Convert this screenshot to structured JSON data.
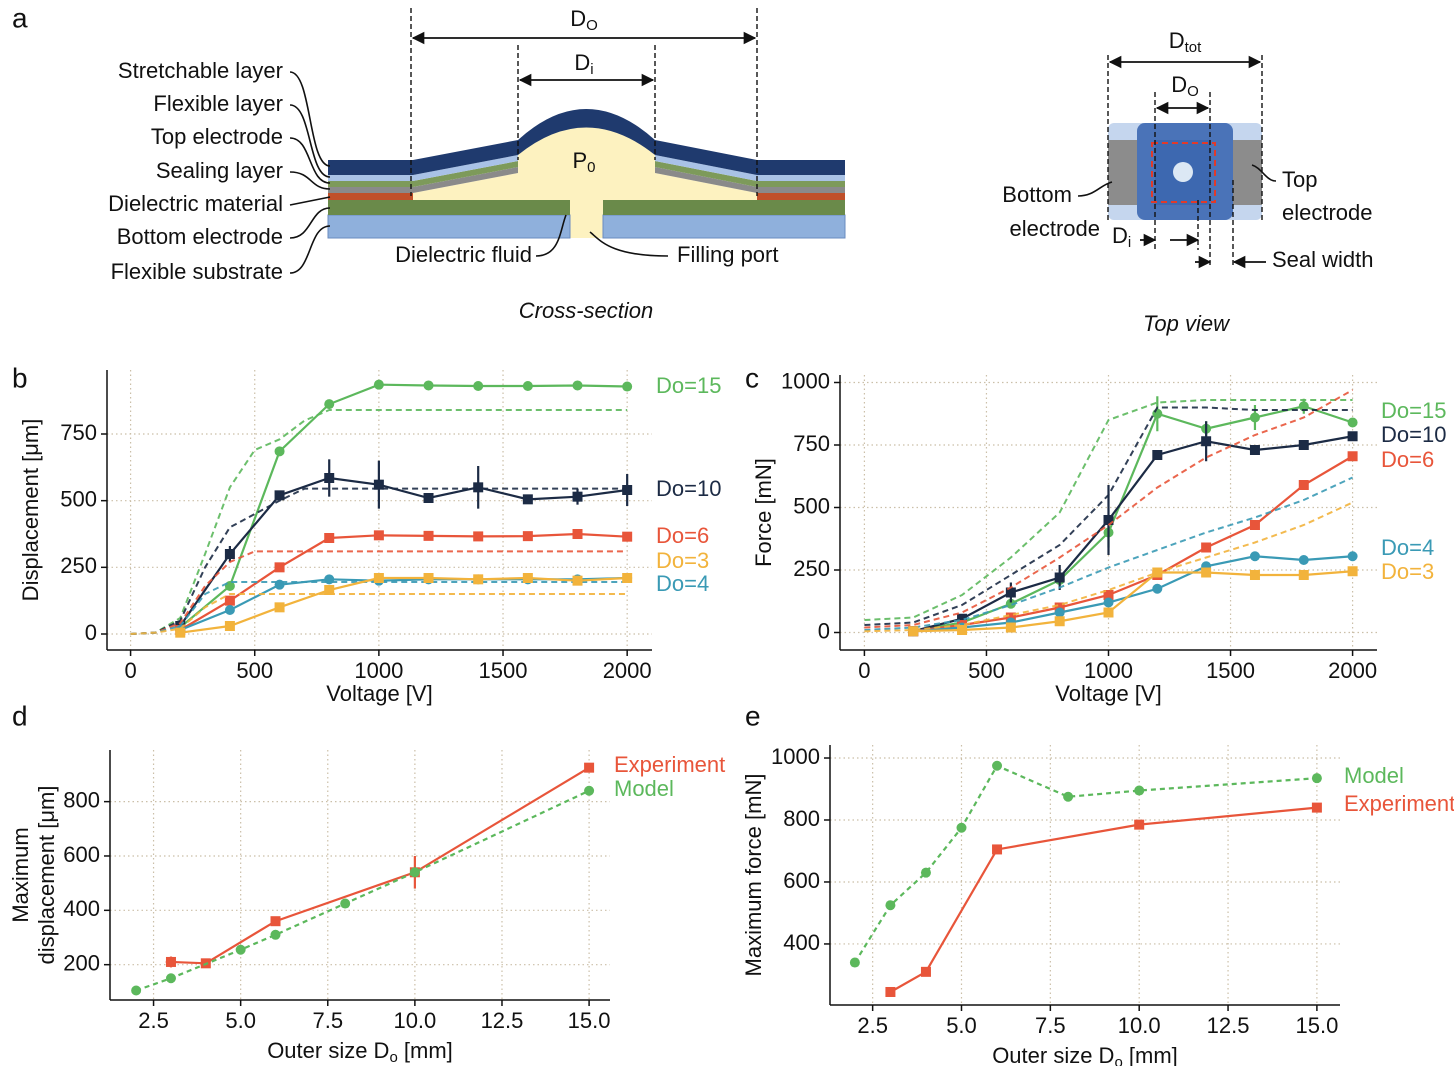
{
  "panels": [
    "a",
    "b",
    "c",
    "d",
    "e"
  ],
  "diagram": {
    "layers": [
      "Stretchable layer",
      "Flexible layer",
      "Top electrode",
      "Sealing layer",
      "Dielectric material",
      "Bottom electrode",
      "Flexible substrate"
    ],
    "fluid": "Dielectric fluid",
    "port": "Filling port",
    "outer": {
      "main": "D",
      "sub": "O"
    },
    "inner": {
      "main": "D",
      "sub": "i"
    },
    "pressure": {
      "main": "P",
      "sub": "0"
    },
    "caption": "Cross-section"
  },
  "top_view": {
    "total": {
      "main": "D",
      "sub": "tot"
    },
    "outer": {
      "main": "D",
      "sub": "O"
    },
    "inner": {
      "main": "D",
      "sub": "i"
    },
    "bottom_electrode": [
      "Bottom",
      "electrode"
    ],
    "top_electrode": [
      "Top",
      "electrode"
    ],
    "seal": "Seal width",
    "caption": "Top view"
  },
  "chart_data": [
    {
      "type": "line",
      "xlabel": "Voltage [V]",
      "ylabel": "Displacement [μm]",
      "xlim": [
        -95,
        2100
      ],
      "ylim": [
        -60,
        990
      ],
      "xticks": [
        0,
        500,
        1000,
        1500,
        2000
      ],
      "yticks": [
        0,
        250,
        500,
        750
      ],
      "grid": true,
      "x": [
        200,
        400,
        600,
        800,
        1000,
        1200,
        1400,
        1600,
        1800,
        2000
      ],
      "model_x": [
        0,
        100,
        200,
        300,
        400,
        500,
        600,
        700,
        800,
        2000
      ],
      "series": [
        {
          "name": "Do=15",
          "color": "#5cb85c",
          "marker": "circle",
          "values": [
            25,
            180,
            685,
            862,
            935,
            932,
            930,
            930,
            932,
            928
          ],
          "model": [
            0,
            5,
            60,
            300,
            550,
            690,
            730,
            800,
            840,
            840
          ]
        },
        {
          "name": "Do=10",
          "color": "#1c2b45",
          "marker": "square",
          "values": [
            30,
            300,
            520,
            585,
            560,
            510,
            550,
            505,
            515,
            540
          ],
          "errors": [
            null,
            30,
            null,
            70,
            90,
            null,
            80,
            null,
            30,
            60
          ],
          "model": [
            0,
            5,
            50,
            250,
            400,
            450,
            500,
            545,
            545,
            545
          ]
        },
        {
          "name": "Do=6",
          "color": "#e8553a",
          "marker": "square",
          "values": [
            15,
            125,
            250,
            360,
            370,
            368,
            366,
            367,
            375,
            365
          ],
          "model": [
            0,
            5,
            40,
            180,
            270,
            310,
            310,
            310,
            310,
            310
          ]
        },
        {
          "name": "Do=4",
          "color": "#3a9ab5",
          "marker": "circle",
          "values": [
            15,
            90,
            185,
            205,
            200,
            205,
            205,
            205,
            205,
            210
          ],
          "model": [
            0,
            5,
            30,
            150,
            195,
            195,
            195,
            195,
            195,
            195
          ]
        },
        {
          "name": "Do=3",
          "color": "#f2b33c",
          "marker": "square",
          "values": [
            5,
            30,
            100,
            165,
            210,
            210,
            205,
            210,
            200,
            210
          ],
          "model": [
            0,
            5,
            20,
            100,
            150,
            150,
            150,
            150,
            150,
            150
          ]
        }
      ]
    },
    {
      "type": "line",
      "xlabel": "Voltage [V]",
      "ylabel": "Force [mN]",
      "xlim": [
        -100,
        2100
      ],
      "ylim": [
        -70,
        1030
      ],
      "xticks": [
        0,
        500,
        1000,
        1500,
        2000
      ],
      "yticks": [
        0,
        250,
        500,
        750,
        1000
      ],
      "grid": true,
      "x": [
        200,
        400,
        600,
        800,
        1000,
        1200,
        1400,
        1600,
        1800,
        2000
      ],
      "model_x": [
        0,
        200,
        400,
        600,
        800,
        1000,
        1200,
        1400,
        1600,
        1800,
        2000
      ],
      "series": [
        {
          "name": "Do=15",
          "color": "#5cb85c",
          "marker": "circle",
          "values": [
            5,
            40,
            115,
            210,
            400,
            875,
            815,
            860,
            905,
            840
          ],
          "errors": [
            null,
            null,
            null,
            null,
            60,
            70,
            30,
            50,
            30,
            null
          ],
          "model": [
            50,
            60,
            150,
            300,
            480,
            850,
            920,
            930,
            930,
            930,
            930
          ]
        },
        {
          "name": "Do=10",
          "color": "#1c2b45",
          "marker": "square",
          "values": [
            5,
            55,
            160,
            220,
            450,
            710,
            765,
            730,
            750,
            785
          ],
          "errors": [
            null,
            null,
            40,
            50,
            140,
            null,
            80,
            null,
            null,
            null
          ],
          "model": [
            30,
            40,
            110,
            230,
            350,
            550,
            900,
            900,
            890,
            890,
            890
          ]
        },
        {
          "name": "Do=6",
          "color": "#e8553a",
          "marker": "square",
          "values": [
            5,
            30,
            60,
            100,
            150,
            230,
            340,
            430,
            590,
            705
          ],
          "model": [
            20,
            30,
            80,
            180,
            300,
            430,
            580,
            700,
            790,
            860,
            970
          ]
        },
        {
          "name": "Do=4",
          "color": "#3a9ab5",
          "marker": "circle",
          "values": [
            5,
            20,
            40,
            80,
            120,
            175,
            265,
            305,
            290,
            305
          ],
          "model": [
            10,
            20,
            50,
            110,
            180,
            260,
            330,
            400,
            460,
            530,
            620
          ]
        },
        {
          "name": "Do=3",
          "color": "#f2b33c",
          "marker": "square",
          "values": [
            5,
            10,
            20,
            45,
            80,
            240,
            240,
            230,
            230,
            245
          ],
          "model": [
            5,
            10,
            30,
            70,
            110,
            170,
            240,
            300,
            360,
            430,
            520
          ]
        }
      ]
    },
    {
      "type": "line",
      "xlabel": [
        "Outer size D",
        "o",
        " [mm]"
      ],
      "ylabel": [
        "Maximum",
        "displacement [μm]"
      ],
      "xlim": [
        1.25,
        15.6
      ],
      "ylim": [
        70,
        990
      ],
      "xticks": [
        2.5,
        {
          "value": 5,
          "label": "5.0"
        },
        7.5,
        {
          "value": 10,
          "label": "10.0"
        },
        12.5,
        {
          "value": 15,
          "label": "15.0"
        }
      ],
      "yticks": [
        200,
        400,
        600,
        800
      ],
      "grid": true,
      "series": [
        {
          "name": "Experiment",
          "color": "#e8553a",
          "marker": "square",
          "dashed": false,
          "x": [
            3,
            4,
            6,
            10,
            15
          ],
          "values": [
            210,
            205,
            360,
            540,
            925
          ],
          "errors": [
            20,
            null,
            null,
            60,
            null
          ],
          "x_errors": [
            0.15,
            null,
            null,
            null,
            null
          ]
        },
        {
          "name": "Model",
          "color": "#5cb85c",
          "marker": "circle",
          "dashed": true,
          "x": [
            2,
            3,
            5,
            6,
            8,
            10,
            15
          ],
          "values": [
            105,
            150,
            255,
            310,
            425,
            540,
            840
          ]
        }
      ]
    },
    {
      "type": "line",
      "xlabel": [
        "Outer size D",
        "o",
        " [mm]"
      ],
      "ylabel": "Maximum force [mN]",
      "xlim": [
        1.3,
        15.65
      ],
      "ylim": [
        203,
        1042
      ],
      "xticks": [
        2.5,
        {
          "value": 5,
          "label": "5.0"
        },
        7.5,
        {
          "value": 10,
          "label": "10.0"
        },
        12.5,
        {
          "value": 15,
          "label": "15.0"
        }
      ],
      "yticks": [
        400,
        600,
        800,
        1000
      ],
      "grid": true,
      "series": [
        {
          "name": "Model",
          "color": "#5cb85c",
          "marker": "circle",
          "dashed": true,
          "x": [
            2,
            3,
            4,
            5,
            6,
            8,
            10,
            15
          ],
          "values": [
            340,
            525,
            630,
            775,
            975,
            875,
            895,
            935
          ]
        },
        {
          "name": "Experiment",
          "color": "#e8553a",
          "marker": "square",
          "dashed": false,
          "x": [
            3,
            4,
            6,
            10,
            15
          ],
          "values": [
            245,
            310,
            705,
            785,
            840
          ]
        }
      ]
    }
  ]
}
